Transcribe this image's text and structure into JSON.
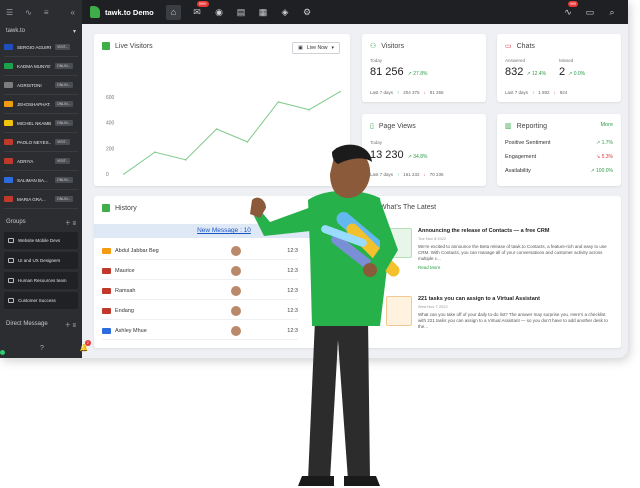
{
  "sidebar": {
    "header_label": "tawk.to",
    "visitors": [
      {
        "name": "SERGIO AGUIRR...",
        "tag": "VISIT...",
        "flag": "#1f4fbf"
      },
      {
        "name": "KADMA MUNYEYA",
        "tag": "ONLIN...",
        "flag": "#1aa34a"
      },
      {
        "name": "AGRISTONI",
        "tag": "ONLIN...",
        "flag": "#7d7d7d"
      },
      {
        "name": "JEHOSHAPHAT...",
        "tag": "ONLIN...",
        "flag": "#f39c12"
      },
      {
        "name": "MICHEL NKAMBE...",
        "tag": "ONLIN...",
        "flag": "#f1c40f"
      },
      {
        "name": "PAOLO NEYES...",
        "tag": "VISIT...",
        "flag": "#c0392b"
      },
      {
        "name": "ADRIYA",
        "tag": "VISIT...",
        "flag": "#c0392b"
      },
      {
        "name": "SALIMAN BA...",
        "tag": "ONLIN...",
        "flag": "#2d6cdf"
      },
      {
        "name": "MARIA GRA...",
        "tag": "ONLIN...",
        "flag": "#c0392b"
      }
    ],
    "groups_label": "Groups",
    "groups": [
      "Website Mobile Devs",
      "UI and UX Designers",
      "Human Resources team",
      "Customer Success"
    ],
    "direct_label": "Direct Message",
    "notif_count": "2"
  },
  "topbar": {
    "brand": "tawk.to Demo",
    "badge_main": "999+",
    "badge_right": "999"
  },
  "live_visitors": {
    "title": "Live Visitors",
    "select": "Live Now",
    "y_ticks": [
      "600",
      "400",
      "200",
      "0"
    ]
  },
  "chart_data": {
    "type": "line",
    "title": "Live Visitors",
    "ylim": [
      0,
      700
    ],
    "y_ticks": [
      0,
      200,
      400,
      600
    ],
    "values": [
      0,
      170,
      110,
      350,
      250,
      560,
      500,
      640
    ]
  },
  "visitors_card": {
    "title": "Visitors",
    "today_label": "Today",
    "today_value": "81 256",
    "today_pct": "27.8%",
    "last7_label": "Last 7 days",
    "last7_up": "204 375",
    "last7_down": "81 256"
  },
  "chats_card": {
    "title": "Chats",
    "answered_label": "Answered",
    "missed_label": "Missed",
    "answered_value": "832",
    "answered_pct": "12.4%",
    "missed_value": "2",
    "missed_pct": "0.0%",
    "last7_label": "Last 7 days",
    "last7_up": "1 892",
    "last7_down": "824"
  },
  "pageviews_card": {
    "title": "Page Views",
    "today_label": "Today",
    "today_value": "13 230",
    "today_pct": "34.8%",
    "last7_label": "Last 7 days",
    "last7_up": "161 232",
    "last7_down": "70 236"
  },
  "reporting_card": {
    "title": "Reporting",
    "more": "More",
    "rows": [
      {
        "label": "Positive Sentiment",
        "value": "1.7%",
        "dir": "up"
      },
      {
        "label": "Engagement",
        "value": "5.3%",
        "dir": "down"
      },
      {
        "label": "Availability",
        "value": "100.0%",
        "dir": "up"
      }
    ]
  },
  "history_card": {
    "title": "History",
    "banner": "New Message : 10",
    "rows": [
      {
        "name": "Abdul Jabbar Beg",
        "time": "12:3",
        "flag": "#f39c12"
      },
      {
        "name": "Maurice",
        "time": "12:3",
        "flag": "#c0392b"
      },
      {
        "name": "Ramsah",
        "time": "12:3",
        "flag": "#c0392b"
      },
      {
        "name": "Endang",
        "time": "12:3",
        "flag": "#c0392b"
      },
      {
        "name": "Ashley Mhue",
        "time": "12:3",
        "flag": "#2d6cdf"
      }
    ]
  },
  "latest_card": {
    "title": "What's The Latest",
    "items": [
      {
        "title": "Announcing the release of Contacts — a free CRM",
        "date": "Tue Nov 8 2022",
        "body": "We're excited to announce the Beta release of tawk.to Contacts, a feature-rich and easy to use CRM. With Contacts, you can manage all of your conversations and customer activity across multiple c..."
      },
      {
        "title": "221 tasks you can assign to a Virtual Assistant",
        "date": "Wed Nov 7 2022",
        "body": "What can you take off of your daily to-do list? The answer may surprise you. Here's a checklist with 221 tasks you can assign to a Virtual Assistant — so you don't have to add another desk to the..."
      }
    ],
    "read_more": "Read More"
  }
}
